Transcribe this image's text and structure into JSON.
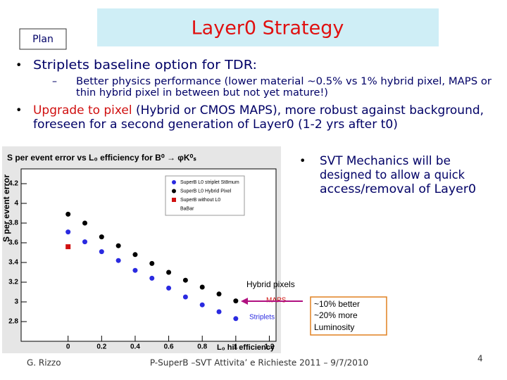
{
  "header": {
    "label": "Plan",
    "title": "Layer0 Strategy"
  },
  "bullets": [
    {
      "text": "Striplets baseline option for TDR:",
      "sub": [
        "Better physics performance (lower material ~0.5% vs 1% hybrid pixel, MAPS or",
        "thin hybrid pixel in between but not yet mature!)"
      ]
    },
    {
      "highlight": "Upgrade to pixel",
      "lines": [
        "(Hybrid or CMOS MAPS), more robust against background,",
        "foreseen for a second generation of Layer0 (1-2 yrs after t0)"
      ]
    }
  ],
  "side_note": [
    "SVT Mechanics will be",
    "designed to allow a quick",
    "access/removal of Layer0"
  ],
  "chart_data": {
    "type": "scatter",
    "title": "S per event error vs L₀ efficiency for B⁰ → φK⁰ₛ",
    "x_label": "L₀ hit efficiency",
    "y_label": "S per event error",
    "xlim": [
      -0.28,
      1.24
    ],
    "ylim": [
      2.6,
      4.35
    ],
    "xticks": [
      0,
      0.2,
      0.4,
      0.6,
      0.8,
      1,
      1.2
    ],
    "yticks": [
      2.8,
      3,
      3.2,
      3.4,
      3.6,
      3.8,
      4,
      4.2
    ],
    "series": [
      {
        "name": "SuperB L0 striplet St8mum",
        "color": "#2a2ae0",
        "marker": "circle",
        "x": [
          0,
          0.1,
          0.2,
          0.3,
          0.4,
          0.5,
          0.6,
          0.7,
          0.8,
          0.9,
          1
        ],
        "values": [
          3.71,
          3.61,
          3.51,
          3.42,
          3.32,
          3.24,
          3.14,
          3.05,
          2.97,
          2.9,
          2.83
        ]
      },
      {
        "name": "SuperB L0 Hybrid Pixel",
        "color": "#000000",
        "marker": "circle",
        "x": [
          0,
          0.1,
          0.2,
          0.3,
          0.4,
          0.5,
          0.6,
          0.7,
          0.8,
          0.9,
          1
        ],
        "values": [
          3.89,
          3.8,
          3.66,
          3.57,
          3.48,
          3.39,
          3.3,
          3.22,
          3.15,
          3.08,
          3.01
        ]
      },
      {
        "name": "SuperB without L0",
        "color": "#d01010",
        "marker": "square",
        "x": [
          0
        ],
        "values": [
          3.56
        ]
      },
      {
        "name": "BaBar",
        "color": "#000000",
        "marker": "none",
        "x": [],
        "values": []
      }
    ],
    "annotations": [
      {
        "text": "Hybrid pixels",
        "color": "#000000"
      },
      {
        "text": "MAPS",
        "color": "#d01010"
      },
      {
        "text": "Striplets",
        "color": "#2a2ae0"
      }
    ]
  },
  "callout": [
    "~10% better",
    "~20% more",
    "Luminosity"
  ],
  "footer": {
    "author": "G. Rizzo",
    "event": "P-SuperB –SVT Attivita’ e Richieste 2011 – 9/7/2010",
    "page": "4"
  }
}
